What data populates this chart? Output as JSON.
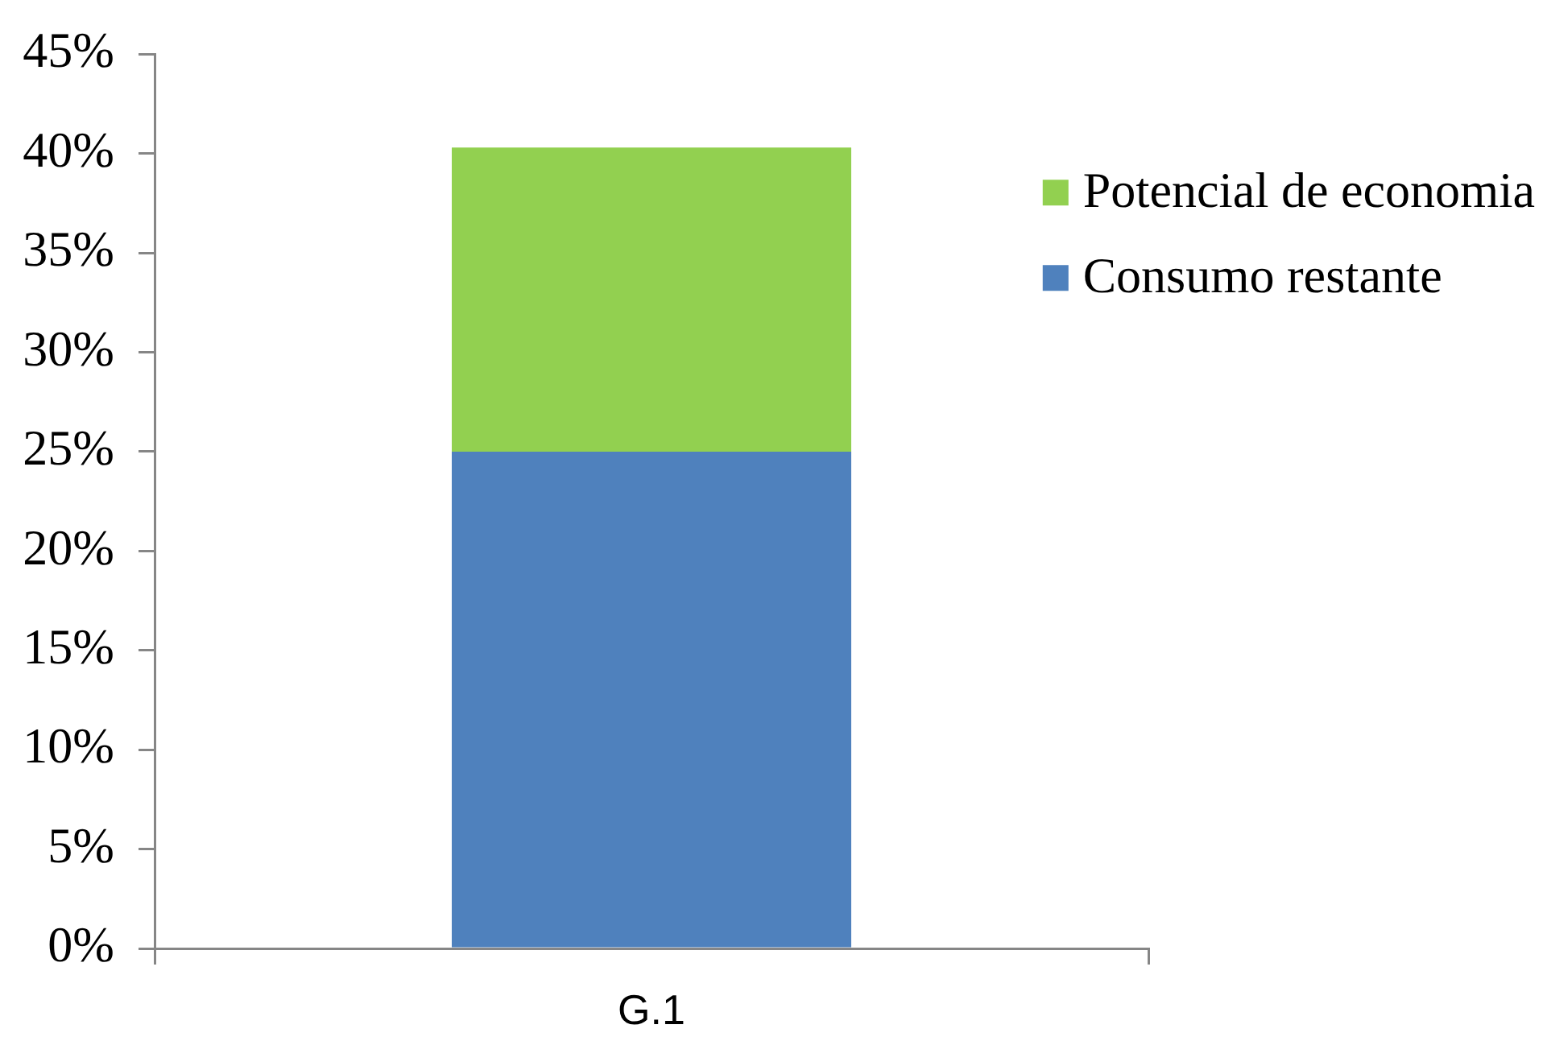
{
  "chart_data": {
    "type": "bar",
    "stacked": true,
    "categories": [
      "G.1"
    ],
    "series": [
      {
        "name": "Consumo restante",
        "color": "#4f81bd",
        "values": [
          25
        ]
      },
      {
        "name": "Potencial de economia",
        "color": "#92d050",
        "values": [
          15.3
        ]
      }
    ],
    "ylim": [
      0,
      45
    ],
    "yticks": [
      {
        "value": 0,
        "label": "0%"
      },
      {
        "value": 5,
        "label": "5%"
      },
      {
        "value": 10,
        "label": "10%"
      },
      {
        "value": 15,
        "label": "15%"
      },
      {
        "value": 20,
        "label": "20%"
      },
      {
        "value": 25,
        "label": "25%"
      },
      {
        "value": 30,
        "label": "30%"
      },
      {
        "value": 35,
        "label": "35%"
      },
      {
        "value": 40,
        "label": "40%"
      },
      {
        "value": 45,
        "label": "45%"
      }
    ],
    "legend": "top right"
  }
}
